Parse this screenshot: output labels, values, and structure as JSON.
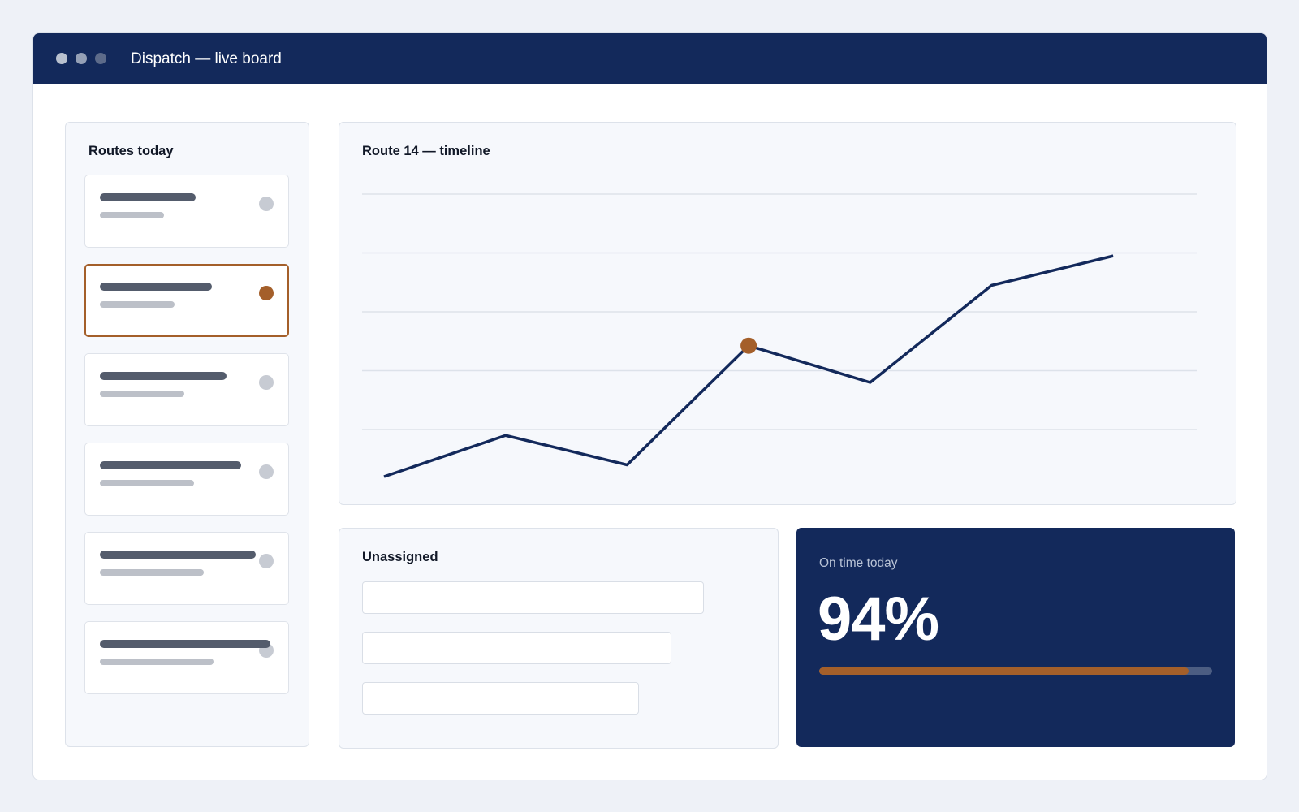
{
  "window": {
    "title": "Dispatch — live board"
  },
  "routes": {
    "title": "Routes today",
    "items": [
      {
        "selected": false,
        "status": "idle"
      },
      {
        "selected": true,
        "status": "active"
      },
      {
        "selected": false,
        "status": "idle"
      },
      {
        "selected": false,
        "status": "idle"
      },
      {
        "selected": false,
        "status": "idle"
      },
      {
        "selected": false,
        "status": "idle"
      }
    ]
  },
  "timeline": {
    "title": "Route 14 — timeline",
    "chart_data": {
      "type": "line",
      "title": "Route 14 — timeline",
      "xlabel": "",
      "ylabel": "",
      "x": [
        0,
        1,
        2,
        3,
        4,
        5,
        6
      ],
      "series": [
        {
          "values": [
            0.4,
            1.8,
            0.8,
            4.85,
            3.6,
            6.9,
            7.9
          ]
        }
      ],
      "ylim": [
        0,
        10
      ],
      "grid": true,
      "highlight_index": 3,
      "line_color": "#13295b",
      "highlight_color": "#a45f2a"
    }
  },
  "unassigned": {
    "title": "Unassigned",
    "slot_count": 3
  },
  "ontime": {
    "label": "On time today",
    "value": "94%",
    "progress": 0.94
  },
  "colors": {
    "navy": "#13295b",
    "accent": "#a45f2a",
    "background": "#eef1f7"
  }
}
